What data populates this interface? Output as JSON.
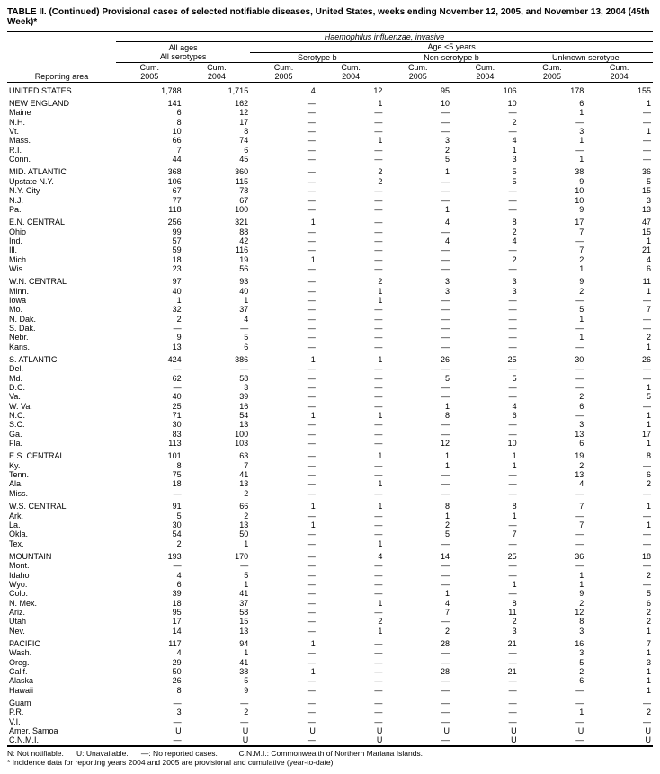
{
  "title": "TABLE II. (Continued) Provisional cases of selected notifiable diseases, United States, weeks ending November 12, 2005, and November 13, 2004 (45th Week)*",
  "superheader": "Haemophilus influenzae, invasive",
  "group_headers": {
    "all_ages": "All ages",
    "all_serotypes": "All serotypes",
    "age_lt5": "Age <5 years",
    "serotype_b": "Serotype b",
    "non_serotype_b": "Non-serotype b",
    "unknown": "Unknown serotype"
  },
  "col_labels": {
    "reporting_area": "Reporting area",
    "cum": "Cum.",
    "y2005": "2005",
    "y2004": "2004"
  },
  "groups": [
    {
      "rows": [
        {
          "area": "UNITED STATES",
          "v": [
            "1,788",
            "1,715",
            "4",
            "12",
            "95",
            "106",
            "178",
            "155"
          ]
        }
      ]
    },
    {
      "rows": [
        {
          "area": "NEW ENGLAND",
          "v": [
            "141",
            "162",
            "—",
            "1",
            "10",
            "10",
            "6",
            "1"
          ]
        },
        {
          "area": "Maine",
          "v": [
            "6",
            "12",
            "—",
            "—",
            "—",
            "—",
            "1",
            "—"
          ]
        },
        {
          "area": "N.H.",
          "v": [
            "8",
            "17",
            "—",
            "—",
            "—",
            "2",
            "—",
            "—"
          ]
        },
        {
          "area": "Vt.",
          "v": [
            "10",
            "8",
            "—",
            "—",
            "—",
            "—",
            "3",
            "1"
          ]
        },
        {
          "area": "Mass.",
          "v": [
            "66",
            "74",
            "—",
            "1",
            "3",
            "4",
            "1",
            "—"
          ]
        },
        {
          "area": "R.I.",
          "v": [
            "7",
            "6",
            "—",
            "—",
            "2",
            "1",
            "—",
            "—"
          ]
        },
        {
          "area": "Conn.",
          "v": [
            "44",
            "45",
            "—",
            "—",
            "5",
            "3",
            "1",
            "—"
          ]
        }
      ]
    },
    {
      "rows": [
        {
          "area": "MID. ATLANTIC",
          "v": [
            "368",
            "360",
            "—",
            "2",
            "1",
            "5",
            "38",
            "36"
          ]
        },
        {
          "area": "Upstate N.Y.",
          "v": [
            "106",
            "115",
            "—",
            "2",
            "—",
            "5",
            "9",
            "5"
          ]
        },
        {
          "area": "N.Y. City",
          "v": [
            "67",
            "78",
            "—",
            "—",
            "—",
            "—",
            "10",
            "15"
          ]
        },
        {
          "area": "N.J.",
          "v": [
            "77",
            "67",
            "—",
            "—",
            "—",
            "—",
            "10",
            "3"
          ]
        },
        {
          "area": "Pa.",
          "v": [
            "118",
            "100",
            "—",
            "—",
            "1",
            "—",
            "9",
            "13"
          ]
        }
      ]
    },
    {
      "rows": [
        {
          "area": "E.N. CENTRAL",
          "v": [
            "256",
            "321",
            "1",
            "—",
            "4",
            "8",
            "17",
            "47"
          ]
        },
        {
          "area": "Ohio",
          "v": [
            "99",
            "88",
            "—",
            "—",
            "—",
            "2",
            "7",
            "15"
          ]
        },
        {
          "area": "Ind.",
          "v": [
            "57",
            "42",
            "—",
            "—",
            "4",
            "4",
            "—",
            "1"
          ]
        },
        {
          "area": "Ill.",
          "v": [
            "59",
            "116",
            "—",
            "—",
            "—",
            "—",
            "7",
            "21"
          ]
        },
        {
          "area": "Mich.",
          "v": [
            "18",
            "19",
            "1",
            "—",
            "—",
            "2",
            "2",
            "4"
          ]
        },
        {
          "area": "Wis.",
          "v": [
            "23",
            "56",
            "—",
            "—",
            "—",
            "—",
            "1",
            "6"
          ]
        }
      ]
    },
    {
      "rows": [
        {
          "area": "W.N. CENTRAL",
          "v": [
            "97",
            "93",
            "—",
            "2",
            "3",
            "3",
            "9",
            "11"
          ]
        },
        {
          "area": "Minn.",
          "v": [
            "40",
            "40",
            "—",
            "1",
            "3",
            "3",
            "2",
            "1"
          ]
        },
        {
          "area": "Iowa",
          "v": [
            "1",
            "1",
            "—",
            "1",
            "—",
            "—",
            "—",
            "—"
          ]
        },
        {
          "area": "Mo.",
          "v": [
            "32",
            "37",
            "—",
            "—",
            "—",
            "—",
            "5",
            "7"
          ]
        },
        {
          "area": "N. Dak.",
          "v": [
            "2",
            "4",
            "—",
            "—",
            "—",
            "—",
            "1",
            "—"
          ]
        },
        {
          "area": "S. Dak.",
          "v": [
            "—",
            "—",
            "—",
            "—",
            "—",
            "—",
            "—",
            "—"
          ]
        },
        {
          "area": "Nebr.",
          "v": [
            "9",
            "5",
            "—",
            "—",
            "—",
            "—",
            "1",
            "2"
          ]
        },
        {
          "area": "Kans.",
          "v": [
            "13",
            "6",
            "—",
            "—",
            "—",
            "—",
            "—",
            "1"
          ]
        }
      ]
    },
    {
      "rows": [
        {
          "area": "S. ATLANTIC",
          "v": [
            "424",
            "386",
            "1",
            "1",
            "26",
            "25",
            "30",
            "26"
          ]
        },
        {
          "area": "Del.",
          "v": [
            "—",
            "—",
            "—",
            "—",
            "—",
            "—",
            "—",
            "—"
          ]
        },
        {
          "area": "Md.",
          "v": [
            "62",
            "58",
            "—",
            "—",
            "5",
            "5",
            "—",
            "—"
          ]
        },
        {
          "area": "D.C.",
          "v": [
            "—",
            "3",
            "—",
            "—",
            "—",
            "—",
            "—",
            "1"
          ]
        },
        {
          "area": "Va.",
          "v": [
            "40",
            "39",
            "—",
            "—",
            "—",
            "—",
            "2",
            "5"
          ]
        },
        {
          "area": "W. Va.",
          "v": [
            "25",
            "16",
            "—",
            "—",
            "1",
            "4",
            "6",
            "—"
          ]
        },
        {
          "area": "N.C.",
          "v": [
            "71",
            "54",
            "1",
            "1",
            "8",
            "6",
            "—",
            "1"
          ]
        },
        {
          "area": "S.C.",
          "v": [
            "30",
            "13",
            "—",
            "—",
            "—",
            "—",
            "3",
            "1"
          ]
        },
        {
          "area": "Ga.",
          "v": [
            "83",
            "100",
            "—",
            "—",
            "—",
            "—",
            "13",
            "17"
          ]
        },
        {
          "area": "Fla.",
          "v": [
            "113",
            "103",
            "—",
            "—",
            "12",
            "10",
            "6",
            "1"
          ]
        }
      ]
    },
    {
      "rows": [
        {
          "area": "E.S. CENTRAL",
          "v": [
            "101",
            "63",
            "—",
            "1",
            "1",
            "1",
            "19",
            "8"
          ]
        },
        {
          "area": "Ky.",
          "v": [
            "8",
            "7",
            "—",
            "—",
            "1",
            "1",
            "2",
            "—"
          ]
        },
        {
          "area": "Tenn.",
          "v": [
            "75",
            "41",
            "—",
            "—",
            "—",
            "—",
            "13",
            "6"
          ]
        },
        {
          "area": "Ala.",
          "v": [
            "18",
            "13",
            "—",
            "1",
            "—",
            "—",
            "4",
            "2"
          ]
        },
        {
          "area": "Miss.",
          "v": [
            "—",
            "2",
            "—",
            "—",
            "—",
            "—",
            "—",
            "—"
          ]
        }
      ]
    },
    {
      "rows": [
        {
          "area": "W.S. CENTRAL",
          "v": [
            "91",
            "66",
            "1",
            "1",
            "8",
            "8",
            "7",
            "1"
          ]
        },
        {
          "area": "Ark.",
          "v": [
            "5",
            "2",
            "—",
            "—",
            "1",
            "1",
            "—",
            "—"
          ]
        },
        {
          "area": "La.",
          "v": [
            "30",
            "13",
            "1",
            "—",
            "2",
            "—",
            "7",
            "1"
          ]
        },
        {
          "area": "Okla.",
          "v": [
            "54",
            "50",
            "—",
            "—",
            "5",
            "7",
            "—",
            "—"
          ]
        },
        {
          "area": "Tex.",
          "v": [
            "2",
            "1",
            "—",
            "1",
            "—",
            "—",
            "—",
            "—"
          ]
        }
      ]
    },
    {
      "rows": [
        {
          "area": "MOUNTAIN",
          "v": [
            "193",
            "170",
            "—",
            "4",
            "14",
            "25",
            "36",
            "18"
          ]
        },
        {
          "area": "Mont.",
          "v": [
            "—",
            "—",
            "—",
            "—",
            "—",
            "—",
            "—",
            "—"
          ]
        },
        {
          "area": "Idaho",
          "v": [
            "4",
            "5",
            "—",
            "—",
            "—",
            "—",
            "1",
            "2"
          ]
        },
        {
          "area": "Wyo.",
          "v": [
            "6",
            "1",
            "—",
            "—",
            "—",
            "1",
            "1",
            "—"
          ]
        },
        {
          "area": "Colo.",
          "v": [
            "39",
            "41",
            "—",
            "—",
            "1",
            "—",
            "9",
            "5"
          ]
        },
        {
          "area": "N. Mex.",
          "v": [
            "18",
            "37",
            "—",
            "1",
            "4",
            "8",
            "2",
            "6"
          ]
        },
        {
          "area": "Ariz.",
          "v": [
            "95",
            "58",
            "—",
            "—",
            "7",
            "11",
            "12",
            "2"
          ]
        },
        {
          "area": "Utah",
          "v": [
            "17",
            "15",
            "—",
            "2",
            "—",
            "2",
            "8",
            "2"
          ]
        },
        {
          "area": "Nev.",
          "v": [
            "14",
            "13",
            "—",
            "1",
            "2",
            "3",
            "3",
            "1"
          ]
        }
      ]
    },
    {
      "rows": [
        {
          "area": "PACIFIC",
          "v": [
            "117",
            "94",
            "1",
            "—",
            "28",
            "21",
            "16",
            "7"
          ]
        },
        {
          "area": "Wash.",
          "v": [
            "4",
            "1",
            "—",
            "—",
            "—",
            "—",
            "3",
            "1"
          ]
        },
        {
          "area": "Oreg.",
          "v": [
            "29",
            "41",
            "—",
            "—",
            "—",
            "—",
            "5",
            "3"
          ]
        },
        {
          "area": "Calif.",
          "v": [
            "50",
            "38",
            "1",
            "—",
            "28",
            "21",
            "2",
            "1"
          ]
        },
        {
          "area": "Alaska",
          "v": [
            "26",
            "5",
            "—",
            "—",
            "—",
            "—",
            "6",
            "1"
          ]
        },
        {
          "area": "Hawaii",
          "v": [
            "8",
            "9",
            "—",
            "—",
            "—",
            "—",
            "—",
            "1"
          ]
        }
      ]
    },
    {
      "rows": [
        {
          "area": "Guam",
          "v": [
            "—",
            "—",
            "—",
            "—",
            "—",
            "—",
            "—",
            "—"
          ]
        },
        {
          "area": "P.R.",
          "v": [
            "3",
            "2",
            "—",
            "—",
            "—",
            "—",
            "1",
            "2"
          ]
        },
        {
          "area": "V.I.",
          "v": [
            "—",
            "—",
            "—",
            "—",
            "—",
            "—",
            "—",
            "—"
          ]
        },
        {
          "area": "Amer. Samoa",
          "v": [
            "U",
            "U",
            "U",
            "U",
            "U",
            "U",
            "U",
            "U"
          ]
        },
        {
          "area": "C.N.M.I.",
          "v": [
            "—",
            "U",
            "—",
            "U",
            "—",
            "U",
            "—",
            "U"
          ]
        }
      ]
    }
  ],
  "notes": {
    "n": "N: Not notifiable.",
    "u": "U: Unavailable.",
    "dash": "—: No reported cases.",
    "cnmi": "C.N.M.I.: Commonwealth of Northern Mariana Islands.",
    "incidence": "* Incidence data for reporting years 2004 and 2005 are provisional and cumulative (year-to-date)."
  }
}
